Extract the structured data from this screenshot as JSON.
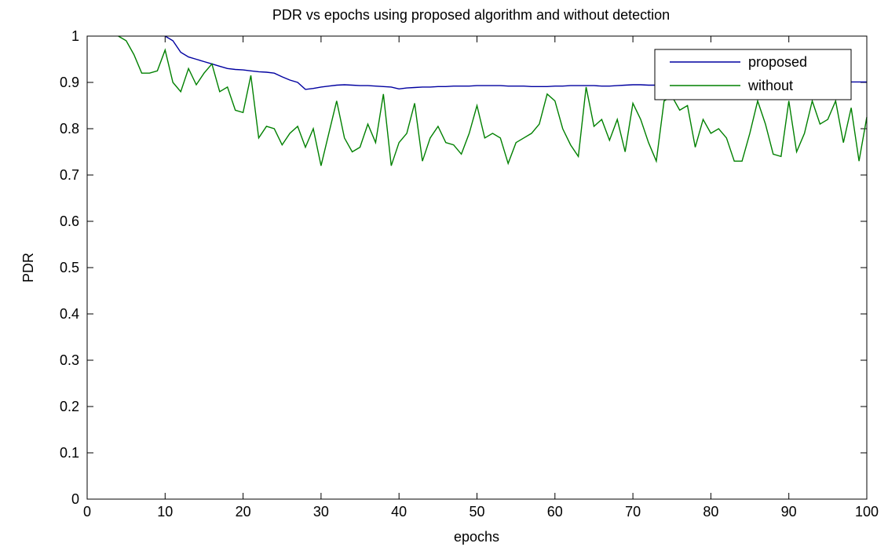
{
  "chart_data": {
    "type": "line",
    "title": "PDR vs epochs using proposed algorithm and without detection",
    "xlabel": "epochs",
    "ylabel": "PDR",
    "xlim": [
      0,
      100
    ],
    "ylim": [
      0,
      1
    ],
    "xticks": [
      0,
      10,
      20,
      30,
      40,
      50,
      60,
      70,
      80,
      90,
      100
    ],
    "yticks": [
      0,
      0.1,
      0.2,
      0.3,
      0.4,
      0.5,
      0.6,
      0.7,
      0.8,
      0.9,
      1
    ],
    "ytick_labels": [
      "0",
      "0.1",
      "0.2",
      "0.3",
      "0.4",
      "0.5",
      "0.6",
      "0.7",
      "0.8",
      "0.9",
      "1"
    ],
    "grid": false,
    "legend_position": "top-right",
    "series": [
      {
        "name": "proposed",
        "color": "#0000a0",
        "x": [
          10,
          11,
          12,
          13,
          14,
          15,
          16,
          17,
          18,
          19,
          20,
          21,
          22,
          23,
          24,
          25,
          26,
          27,
          28,
          29,
          30,
          31,
          32,
          33,
          34,
          35,
          36,
          37,
          38,
          39,
          40,
          41,
          42,
          43,
          44,
          45,
          46,
          47,
          48,
          49,
          50,
          51,
          52,
          53,
          54,
          55,
          56,
          57,
          58,
          59,
          60,
          61,
          62,
          63,
          64,
          65,
          66,
          67,
          68,
          69,
          70,
          71,
          72,
          73,
          74,
          75,
          76,
          77,
          78,
          79,
          80,
          81,
          82,
          83,
          84,
          85,
          86,
          87,
          88,
          89,
          90,
          91,
          92,
          93,
          94,
          95,
          96,
          97,
          98,
          99,
          100
        ],
        "y": [
          1.0,
          0.99,
          0.965,
          0.955,
          0.95,
          0.945,
          0.94,
          0.935,
          0.93,
          0.928,
          0.927,
          0.925,
          0.923,
          0.922,
          0.92,
          0.912,
          0.905,
          0.9,
          0.885,
          0.887,
          0.89,
          0.892,
          0.894,
          0.895,
          0.894,
          0.893,
          0.893,
          0.892,
          0.891,
          0.89,
          0.886,
          0.888,
          0.889,
          0.89,
          0.89,
          0.891,
          0.891,
          0.892,
          0.892,
          0.892,
          0.893,
          0.893,
          0.893,
          0.893,
          0.892,
          0.892,
          0.892,
          0.891,
          0.891,
          0.891,
          0.892,
          0.892,
          0.893,
          0.893,
          0.893,
          0.893,
          0.892,
          0.892,
          0.893,
          0.894,
          0.895,
          0.895,
          0.894,
          0.894,
          0.895,
          0.895,
          0.896,
          0.896,
          0.897,
          0.897,
          0.898,
          0.898,
          0.898,
          0.899,
          0.899,
          0.899,
          0.9,
          0.9,
          0.9,
          0.9,
          0.9,
          0.9,
          0.9,
          0.901,
          0.901,
          0.901,
          0.901,
          0.901,
          0.901,
          0.901,
          0.901
        ]
      },
      {
        "name": "without",
        "color": "#008000",
        "x": [
          4,
          5,
          6,
          7,
          8,
          9,
          10,
          11,
          12,
          13,
          14,
          15,
          16,
          17,
          18,
          19,
          20,
          21,
          22,
          23,
          24,
          25,
          26,
          27,
          28,
          29,
          30,
          31,
          32,
          33,
          34,
          35,
          36,
          37,
          38,
          39,
          40,
          41,
          42,
          43,
          44,
          45,
          46,
          47,
          48,
          49,
          50,
          51,
          52,
          53,
          54,
          55,
          56,
          57,
          58,
          59,
          60,
          61,
          62,
          63,
          64,
          65,
          66,
          67,
          68,
          69,
          70,
          71,
          72,
          73,
          74,
          75,
          76,
          77,
          78,
          79,
          80,
          81,
          82,
          83,
          84,
          85,
          86,
          87,
          88,
          89,
          90,
          91,
          92,
          93,
          94,
          95,
          96,
          97,
          98,
          99,
          100
        ],
        "y": [
          1.0,
          0.99,
          0.96,
          0.92,
          0.92,
          0.925,
          0.97,
          0.9,
          0.88,
          0.93,
          0.895,
          0.92,
          0.94,
          0.88,
          0.89,
          0.84,
          0.835,
          0.915,
          0.78,
          0.805,
          0.8,
          0.765,
          0.79,
          0.805,
          0.76,
          0.8,
          0.72,
          0.79,
          0.86,
          0.78,
          0.75,
          0.76,
          0.81,
          0.77,
          0.875,
          0.72,
          0.77,
          0.79,
          0.855,
          0.73,
          0.78,
          0.805,
          0.77,
          0.765,
          0.745,
          0.79,
          0.85,
          0.78,
          0.79,
          0.78,
          0.725,
          0.77,
          0.78,
          0.79,
          0.81,
          0.875,
          0.86,
          0.8,
          0.765,
          0.74,
          0.89,
          0.805,
          0.82,
          0.775,
          0.82,
          0.75,
          0.855,
          0.82,
          0.77,
          0.73,
          0.86,
          0.87,
          0.84,
          0.85,
          0.76,
          0.82,
          0.79,
          0.8,
          0.78,
          0.73,
          0.73,
          0.79,
          0.86,
          0.81,
          0.745,
          0.74,
          0.86,
          0.75,
          0.79,
          0.86,
          0.81,
          0.82,
          0.86,
          0.77,
          0.845,
          0.73,
          0.825
        ]
      }
    ]
  }
}
